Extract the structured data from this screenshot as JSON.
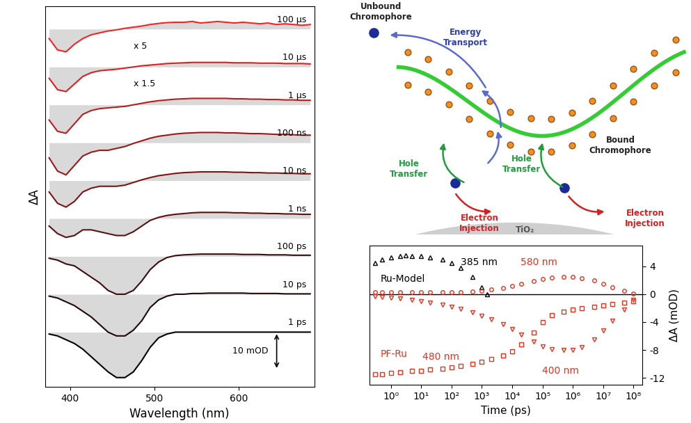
{
  "chart_data": [
    {
      "type": "line",
      "xlabel": "Wavelength (nm)",
      "ylabel": "ΔA",
      "xlim": [
        370,
        690
      ],
      "xticks": [
        400,
        500,
        600
      ],
      "tick_labels": "x",
      "x": [
        375,
        385,
        395,
        405,
        415,
        425,
        435,
        445,
        455,
        465,
        475,
        485,
        495,
        505,
        515,
        525,
        535,
        545,
        555,
        565,
        575,
        585,
        595,
        605,
        615,
        625,
        635,
        645,
        655,
        665,
        675,
        685
      ],
      "scale_bar": {
        "value": 10,
        "label": "10 mOD"
      },
      "series": [
        {
          "name": "1 ps",
          "color": "#000000",
          "values": [
            -0.5,
            -1,
            -2,
            -3,
            -4.5,
            -6.5,
            -8.5,
            -10.5,
            -12,
            -12,
            -10.5,
            -7.5,
            -4,
            -1.5,
            -0.5,
            0,
            0,
            0,
            0,
            0,
            0,
            0,
            0,
            0,
            0,
            0,
            0,
            0,
            0,
            0,
            0,
            0
          ]
        },
        {
          "name": "10 ps",
          "color": "#1f0808",
          "values": [
            -0.5,
            -1,
            -2,
            -3,
            -4.5,
            -6,
            -8,
            -10,
            -11,
            -11,
            -9.5,
            -7,
            -3.5,
            -1.5,
            -0.5,
            0,
            0,
            0.2,
            0.2,
            0.3,
            0.3,
            0.3,
            0.3,
            0.3,
            0.2,
            0.2,
            0.2,
            0.2,
            0.1,
            0.1,
            0.1,
            0.1
          ]
        },
        {
          "name": "100 ps",
          "color": "#3d0c0c",
          "values": [
            -0.5,
            -1,
            -2,
            -2.5,
            -4,
            -5.5,
            -7,
            -9,
            -10,
            -10,
            -9,
            -6.5,
            -3.5,
            -1.5,
            -0.3,
            0.2,
            0.4,
            0.5,
            0.6,
            0.6,
            0.6,
            0.6,
            0.6,
            0.5,
            0.5,
            0.5,
            0.4,
            0.4,
            0.4,
            0.3,
            0.3,
            0.3
          ]
        },
        {
          "name": "1 ns",
          "color": "#5c1010",
          "values": [
            -2,
            -4,
            -5,
            -4.5,
            -3,
            -3,
            -3.5,
            -4,
            -4.5,
            -4.5,
            -3.5,
            -2,
            -0.5,
            0.3,
            0.8,
            1.1,
            1.3,
            1.5,
            1.6,
            1.6,
            1.6,
            1.6,
            1.5,
            1.5,
            1.4,
            1.4,
            1.3,
            1.3,
            1.2,
            1.2,
            1.1,
            1.1
          ]
        },
        {
          "name": "10 ns",
          "color": "#7d1414",
          "values": [
            -3,
            -6,
            -7,
            -5.5,
            -3,
            -2,
            -1.5,
            -1.5,
            -1.5,
            -1.2,
            -0.5,
            0.2,
            0.8,
            1.3,
            1.6,
            1.9,
            2.1,
            2.2,
            2.3,
            2.3,
            2.3,
            2.3,
            2.2,
            2.2,
            2.1,
            2.1,
            2.0,
            2.0,
            1.9,
            1.9,
            1.8,
            1.8
          ]
        },
        {
          "name": "100 ns",
          "color": "#9c1818",
          "values": [
            -4,
            -7.5,
            -8.5,
            -6,
            -3.5,
            -2.5,
            -2,
            -2,
            -1.5,
            -1,
            -0.2,
            0.5,
            1.2,
            1.7,
            2,
            2.3,
            2.5,
            2.6,
            2.7,
            2.7,
            2.7,
            2.6,
            2.6,
            2.5,
            2.4,
            2.4,
            2.3,
            2.2,
            2.2,
            2.1,
            2.0,
            2.0
          ]
        },
        {
          "name": "1 µs",
          "color": "#bb1c1c",
          "values": [
            -4,
            -7,
            -7.5,
            -5,
            -2.5,
            -1.5,
            -1,
            -0.8,
            -0.6,
            -0.4,
            0,
            0.4,
            0.8,
            1.1,
            1.3,
            1.5,
            1.6,
            1.7,
            1.7,
            1.7,
            1.7,
            1.7,
            1.6,
            1.6,
            1.5,
            1.5,
            1.4,
            1.4,
            1.3,
            1.3,
            1.2,
            1.2
          ]
        },
        {
          "name": "10 µs",
          "color": "#da2020",
          "note": "x 1.5",
          "values": [
            -3,
            -6,
            -6.5,
            -4.5,
            -2.5,
            -1.5,
            -1,
            -0.8,
            -0.6,
            -0.3,
            0,
            0.3,
            0.5,
            0.7,
            0.9,
            1,
            1.1,
            1.2,
            1.2,
            1.2,
            1.2,
            1.2,
            1.1,
            1.1,
            1.1,
            1,
            1,
            1,
            0.9,
            0.9,
            0.9,
            0.8
          ]
        },
        {
          "name": "100 µs",
          "color": "#f52424",
          "note": "x 5",
          "values": [
            -2.5,
            -5.5,
            -6,
            -4,
            -2.5,
            -1.5,
            -1,
            -0.5,
            -0.2,
            0.2,
            0.5,
            0.8,
            1.2,
            1.5,
            1.7,
            1.8,
            1.8,
            2,
            1.6,
            1.8,
            2,
            1.8,
            1.6,
            1.8,
            1.6,
            1.4,
            1.6,
            1.2,
            1.4,
            1.2,
            1.0,
            1.2
          ]
        }
      ]
    },
    {
      "type": "scatter",
      "log": "x",
      "xlabel": "Time (ps)",
      "ylabel": "ΔA (mOD)",
      "xlim": [
        0.2,
        200000000
      ],
      "xticks": [
        {
          "value": 1,
          "label": "10⁰"
        },
        {
          "value": 10,
          "label": "10¹"
        },
        {
          "value": 100,
          "label": "10²"
        },
        {
          "value": 1000,
          "label": "10³"
        },
        {
          "value": 10000,
          "label": "10⁴"
        },
        {
          "value": 100000,
          "label": "10⁵"
        },
        {
          "value": 1000000,
          "label": "10⁶"
        },
        {
          "value": 10000000,
          "label": "10⁷"
        },
        {
          "value": 100000000,
          "label": "10⁸"
        }
      ],
      "ylim": [
        -13,
        7
      ],
      "yticks": [
        -12,
        -8,
        -4,
        0,
        4
      ],
      "annotations": [
        {
          "text": "Ru-Model",
          "color": "#000000"
        },
        {
          "text": "PF-Ru",
          "color": "#e8321e"
        }
      ],
      "series": [
        {
          "name": "385 nm",
          "color": "#000000",
          "marker": "triangle",
          "x": [
            0.3,
            0.5,
            1,
            2,
            3,
            5,
            10,
            20,
            50,
            100,
            200,
            500,
            1000,
            1500
          ],
          "values": [
            4.5,
            5,
            5.3,
            5.5,
            5.6,
            5.5,
            5.5,
            5.3,
            5,
            4.5,
            3.8,
            2.5,
            1,
            0
          ]
        },
        {
          "name": "580 nm",
          "color": "#e8321e",
          "marker": "circle",
          "x": [
            0.3,
            0.5,
            1,
            2,
            5,
            10,
            20,
            50,
            100,
            200,
            500,
            1000,
            2000,
            5000,
            10000,
            20000,
            50000,
            100000,
            200000,
            500000,
            1000000,
            2000000,
            5000000,
            10000000,
            20000000,
            50000000,
            100000000
          ],
          "values": [
            0.3,
            0.3,
            0.3,
            0.3,
            0.3,
            0.3,
            0.3,
            0.3,
            0.3,
            0.3,
            0.4,
            0.5,
            0.7,
            0.9,
            1.2,
            1.5,
            1.9,
            2.2,
            2.4,
            2.5,
            2.5,
            2.3,
            2,
            1.5,
            1,
            0.5,
            0.1
          ]
        },
        {
          "name": "480 nm",
          "color": "#e8321e",
          "marker": "square",
          "x": [
            0.3,
            0.5,
            1,
            2,
            5,
            10,
            20,
            50,
            100,
            200,
            500,
            1000,
            2000,
            5000,
            10000,
            20000,
            50000,
            100000,
            200000,
            500000,
            1000000,
            2000000,
            5000000,
            10000000,
            20000000,
            50000000,
            100000000
          ],
          "values": [
            -11.5,
            -11.5,
            -11.3,
            -11.2,
            -11,
            -11,
            -10.8,
            -10.7,
            -10.5,
            -10.3,
            -10,
            -9.7,
            -9.3,
            -8.8,
            -8.2,
            -7.2,
            -5.5,
            -4,
            -3,
            -2.5,
            -2.2,
            -2,
            -1.8,
            -1.6,
            -1.4,
            -1.2,
            -1
          ]
        },
        {
          "name": "400 nm",
          "color": "#e8321e",
          "marker": "triangle_down",
          "x": [
            0.3,
            0.5,
            1,
            2,
            5,
            10,
            20,
            50,
            100,
            200,
            500,
            1000,
            2000,
            5000,
            10000,
            20000,
            50000,
            100000,
            200000,
            500000,
            1000000,
            2000000,
            5000000,
            10000000,
            20000000,
            50000000,
            100000000
          ],
          "values": [
            -0.3,
            -0.4,
            -0.5,
            -0.6,
            -0.8,
            -1,
            -1.2,
            -1.5,
            -1.8,
            -2.1,
            -2.6,
            -3.1,
            -3.6,
            -4.3,
            -5,
            -5.8,
            -6.8,
            -7.5,
            -7.9,
            -8,
            -8,
            -7.6,
            -6.5,
            -5.2,
            -3.8,
            -2.2,
            -0.8
          ]
        }
      ]
    }
  ],
  "diagram": {
    "labels": [
      {
        "text": "Unbound\nChromophore",
        "color": "#222222"
      },
      {
        "text": "Energy\nTransport",
        "color": "#2a3fb0"
      },
      {
        "text": "Bound\nChromophore",
        "color": "#222222"
      },
      {
        "text": "Hole\nTransfer",
        "color": "#1e9e3a"
      },
      {
        "text": "Hole\nTransfer",
        "color": "#1e9e3a"
      },
      {
        "text": "Electron\nInjection",
        "color": "#d42020"
      },
      {
        "text": "Electron\nInjection",
        "color": "#d42020"
      },
      {
        "text": "TiO₂",
        "color": "#555555"
      }
    ]
  }
}
